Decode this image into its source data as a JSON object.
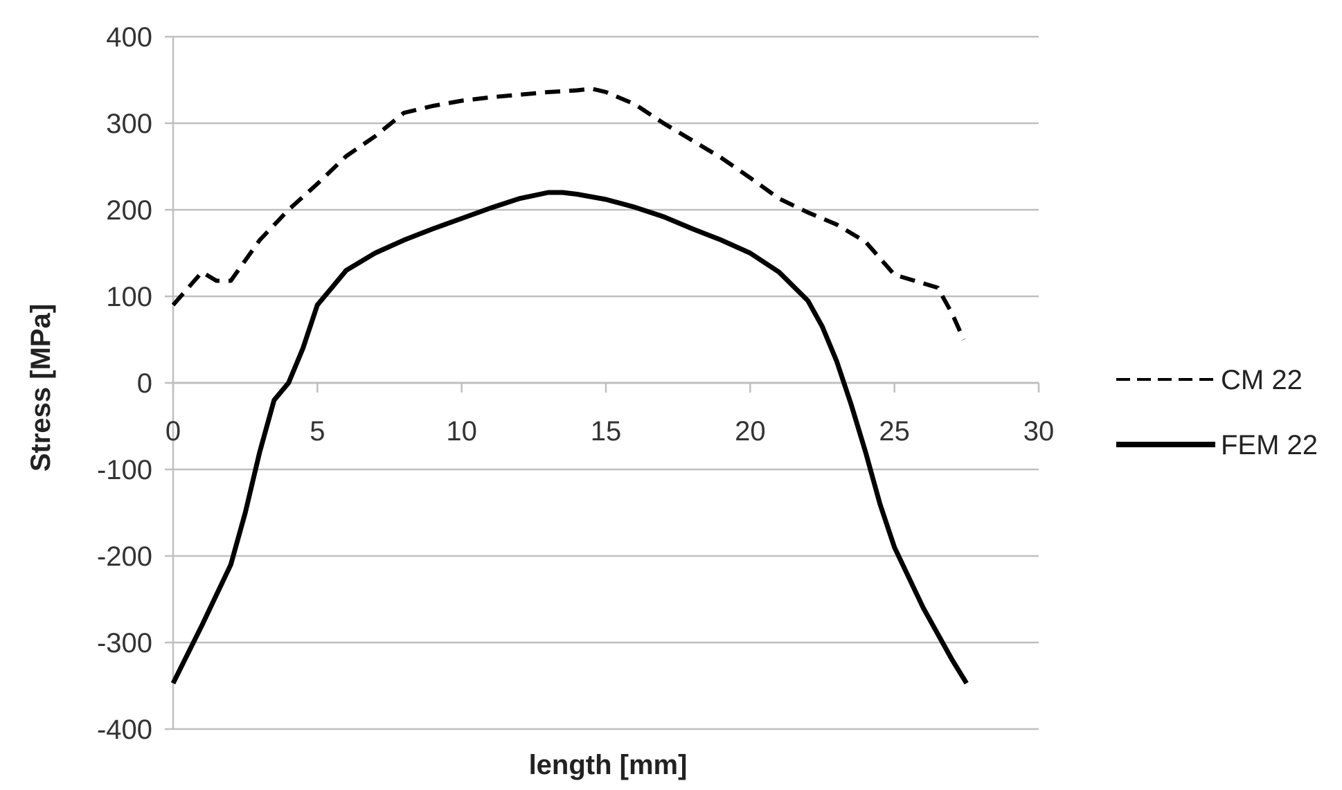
{
  "chart_data": {
    "type": "line",
    "title": "",
    "xlabel": "length [mm]",
    "ylabel": "Stress [MPa]",
    "xlim": [
      0,
      30
    ],
    "ylim": [
      -400,
      400
    ],
    "x_ticks": [
      "0",
      "5",
      "10",
      "15",
      "20",
      "25",
      "30"
    ],
    "y_ticks": [
      "400",
      "300",
      "200",
      "100",
      "0",
      "-100",
      "-200",
      "-300",
      "-400"
    ],
    "grid": "horizontal",
    "x_axis_position": "y=0",
    "legend_position": "right",
    "series": [
      {
        "name": "CM 22",
        "style": "dashed",
        "color": "#000000",
        "x": [
          0,
          1,
          1.5,
          2,
          3,
          4,
          5,
          6,
          7,
          8,
          9,
          10,
          11,
          12,
          13,
          14,
          14.5,
          15,
          16,
          17,
          18,
          19,
          20,
          21,
          22,
          23,
          24,
          25,
          26,
          26.5,
          27,
          27.4
        ],
        "y": [
          90,
          128,
          118,
          118,
          165,
          200,
          230,
          262,
          285,
          312,
          320,
          326,
          330,
          333,
          336,
          338,
          340,
          336,
          322,
          300,
          280,
          260,
          237,
          213,
          197,
          183,
          163,
          125,
          115,
          110,
          80,
          50
        ]
      },
      {
        "name": "FEM 22",
        "style": "solid",
        "color": "#000000",
        "x": [
          0,
          1,
          2,
          2.5,
          3,
          3.5,
          4,
          4.5,
          5,
          5.5,
          6,
          7,
          8,
          9,
          10,
          11,
          12,
          13,
          13.5,
          14,
          15,
          16,
          17,
          18,
          19,
          20,
          21,
          22,
          22.5,
          23,
          23.5,
          24,
          24.5,
          25,
          26,
          27,
          27.5
        ],
        "y": [
          -347,
          -280,
          -210,
          -150,
          -80,
          -20,
          0,
          40,
          90,
          110,
          130,
          150,
          165,
          178,
          190,
          202,
          213,
          220,
          220,
          218,
          212,
          203,
          192,
          178,
          165,
          150,
          128,
          95,
          65,
          25,
          -25,
          -80,
          -140,
          -190,
          -260,
          -320,
          -347
        ]
      }
    ]
  }
}
